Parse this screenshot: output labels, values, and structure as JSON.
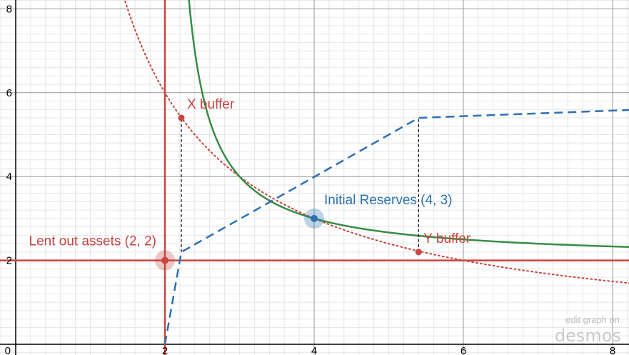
{
  "chart_data": {
    "type": "line",
    "xlim": [
      0,
      8.4
    ],
    "ylim": [
      0,
      8.3
    ],
    "grid": true,
    "minor_grid": true,
    "x_ticks": [
      {
        "value": 2,
        "label": "2"
      },
      {
        "value": 4,
        "label": "4"
      },
      {
        "value": 6,
        "label": "6"
      },
      {
        "value": 8,
        "label": "8"
      }
    ],
    "y_ticks": [
      {
        "value": 2,
        "label": "2"
      },
      {
        "value": 4,
        "label": "4"
      },
      {
        "value": 6,
        "label": "6"
      },
      {
        "value": 8,
        "label": "8"
      }
    ],
    "origin_label": "0",
    "curves": {
      "asymptote_vertical": {
        "x": 2,
        "color": "#c74440",
        "style": "solid"
      },
      "asymptote_horizontal": {
        "y": 2,
        "color": "#c74440",
        "style": "solid"
      },
      "hyperbola_dotted": {
        "equation": "x*y = 12",
        "color": "#c74440",
        "style": "dotted",
        "x_range": [
          1.4,
          8.4
        ]
      },
      "shifted_hyperbola": {
        "equation": "(x-2)(y-2) = 2",
        "color": "#388c46",
        "style": "solid",
        "x_range": [
          2.1,
          8.4
        ]
      },
      "reserve_path": {
        "color": "#2d70b3",
        "style": "dashed",
        "points": [
          [
            2,
            0
          ],
          [
            2.22,
            2.2
          ],
          [
            5.4,
            5.4
          ],
          [
            8.4,
            5.6
          ]
        ]
      },
      "buffer_guides": {
        "color": "#000000",
        "style": "dashed",
        "lines": [
          {
            "x": 2.22,
            "y_from": 2.2,
            "y_to": 5.4
          },
          {
            "x": 5.4,
            "y_from": 2.2,
            "y_to": 5.4
          }
        ]
      }
    },
    "points": [
      {
        "x": 2,
        "y": 2,
        "label": "Lent out assets (2, 2)",
        "color": "#c74440",
        "highlight": true
      },
      {
        "x": 4,
        "y": 3,
        "label": "Initial Reserves (4, 3)",
        "color": "#2d70b3",
        "highlight": true
      },
      {
        "x": 2.22,
        "y": 5.4,
        "label": "X buffer",
        "color": "#c74440",
        "highlight": false
      },
      {
        "x": 5.4,
        "y": 2.2,
        "label": "Y buffer",
        "color": "#c74440",
        "highlight": false
      }
    ]
  },
  "watermark": {
    "top": "edit graph on",
    "brand": "desmos"
  }
}
